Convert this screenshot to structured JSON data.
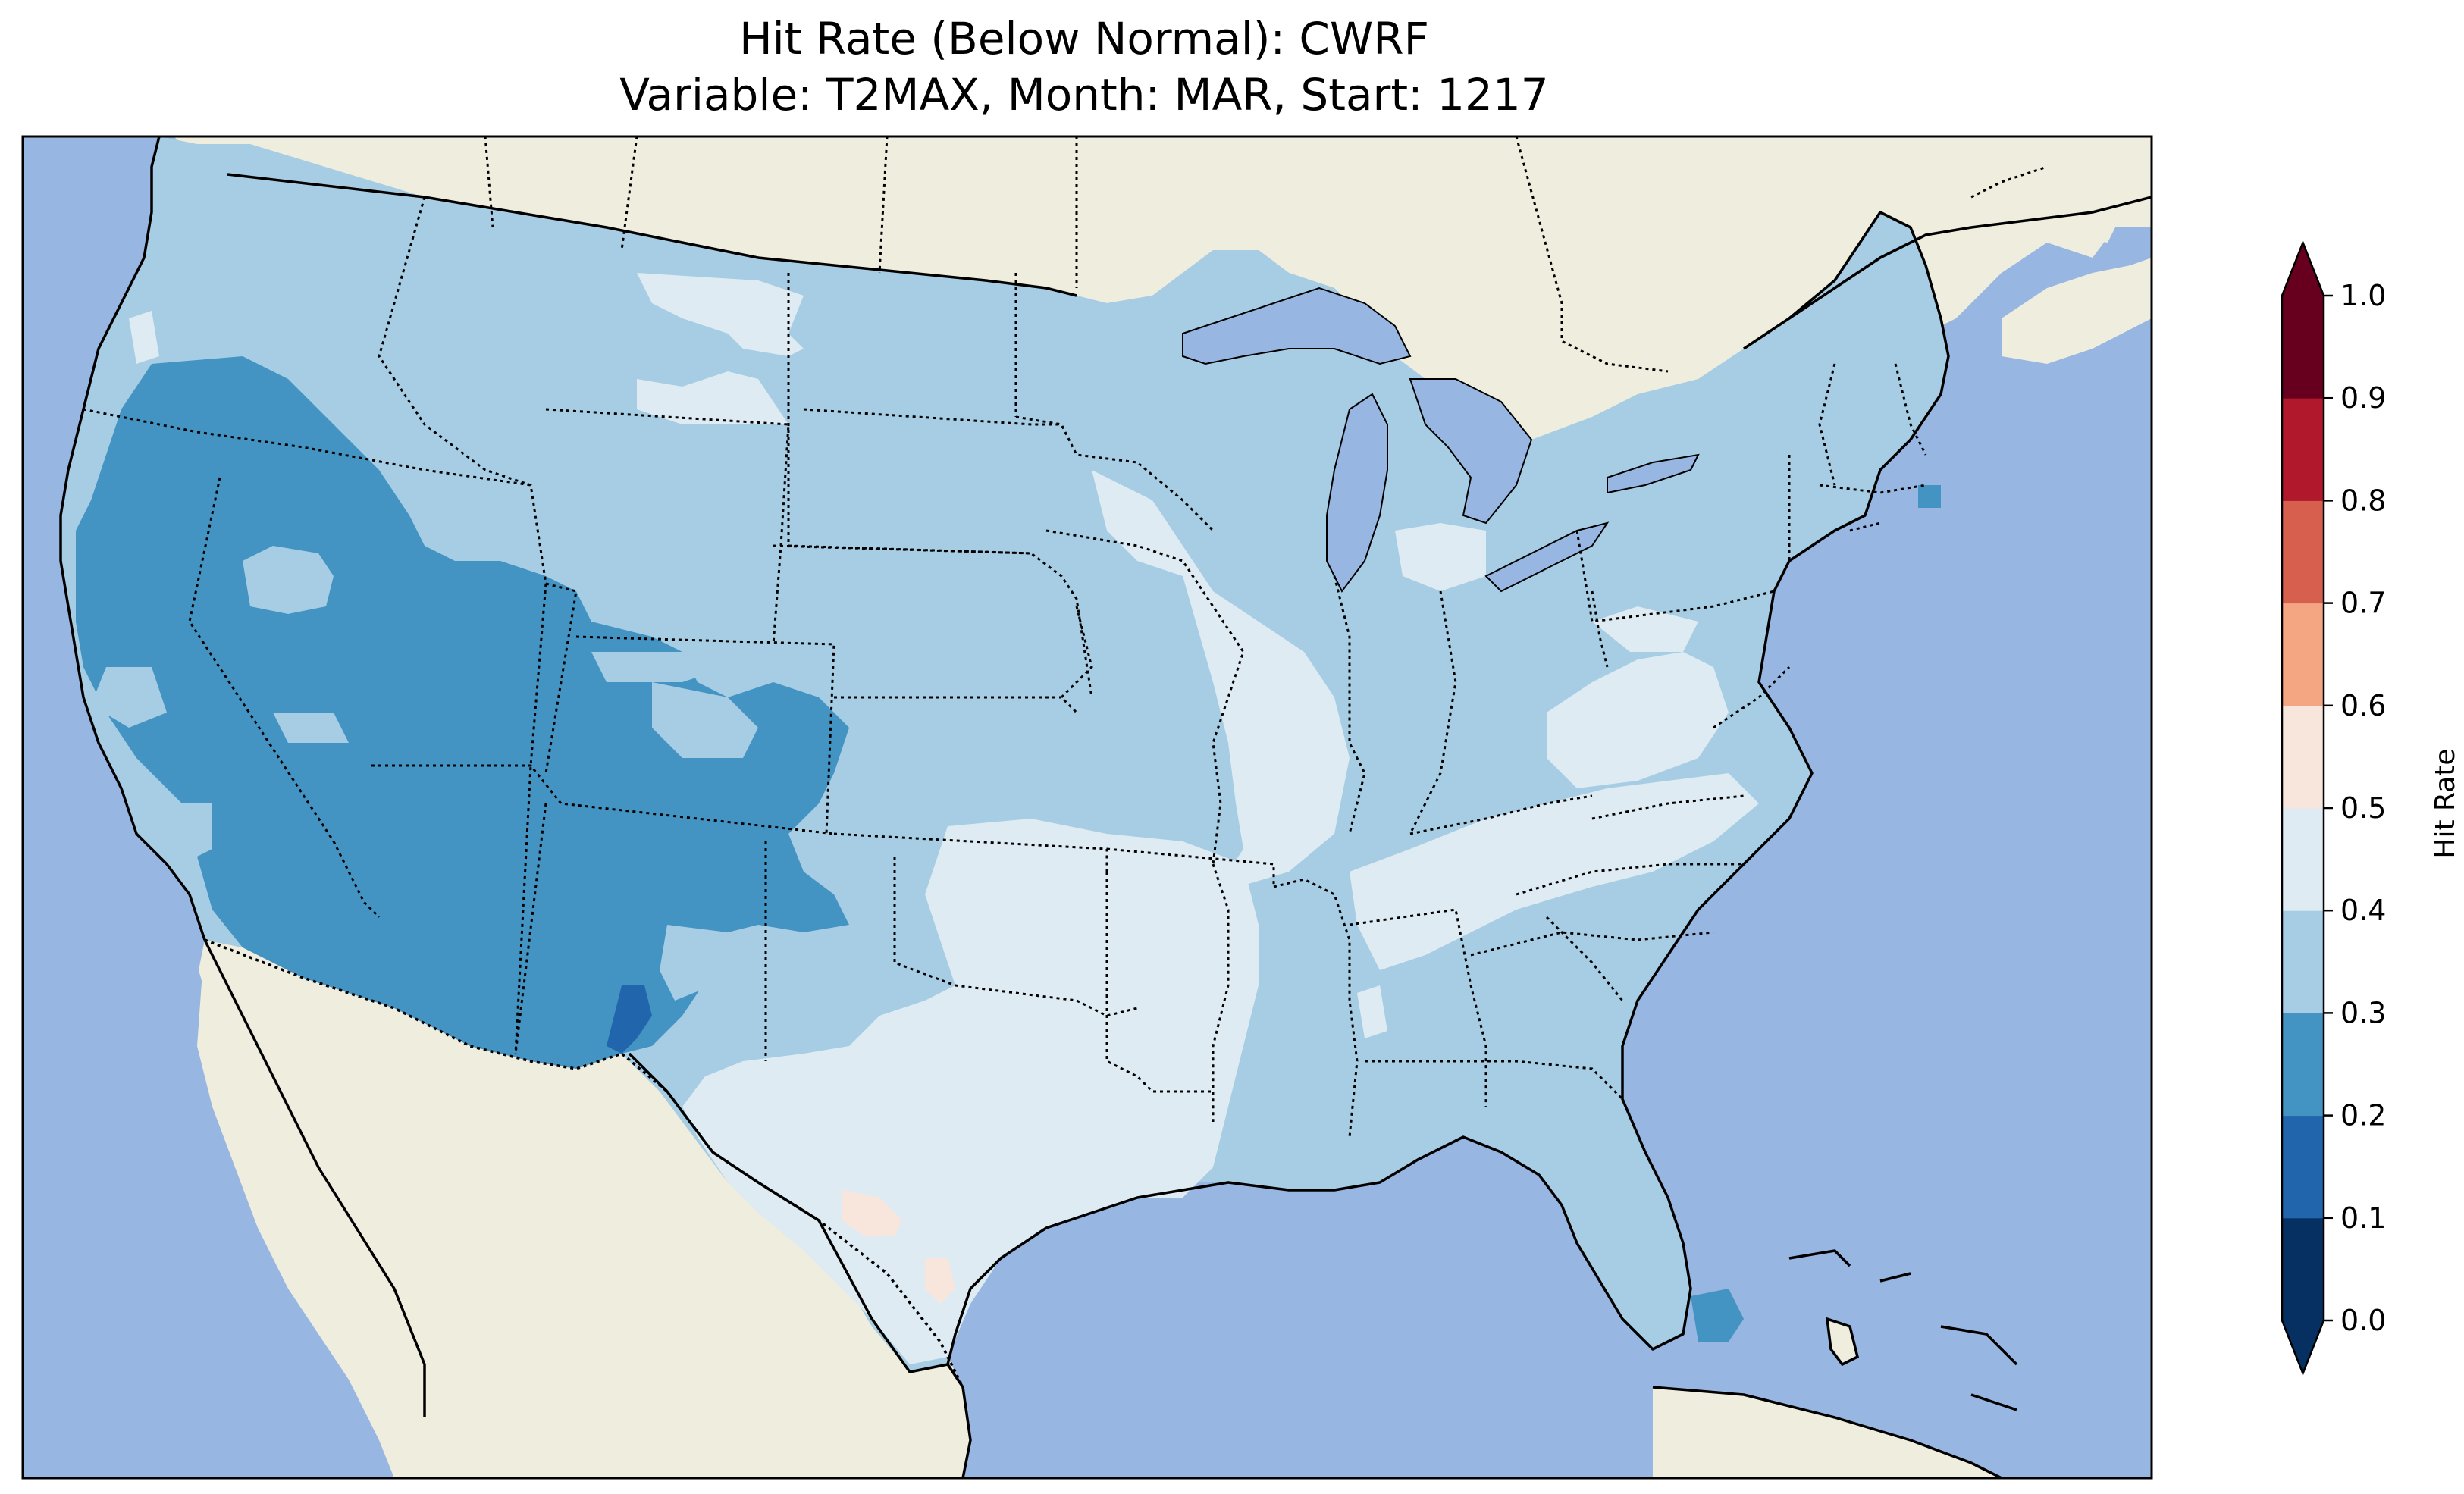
{
  "title": {
    "line1": "Hit Rate (Below Normal): CWRF",
    "line2": "Variable: T2MAX, Month: MAR, Start: 1217"
  },
  "colorbar": {
    "label": "Hit Rate",
    "ticks": [
      "0.0",
      "0.1",
      "0.2",
      "0.3",
      "0.4",
      "0.5",
      "0.6",
      "0.7",
      "0.8",
      "0.9",
      "1.0"
    ],
    "bins": [
      {
        "range": [
          0.0,
          0.1
        ],
        "color": "#053061"
      },
      {
        "range": [
          0.1,
          0.2
        ],
        "color": "#2166ac"
      },
      {
        "range": [
          0.2,
          0.3
        ],
        "color": "#4393c3"
      },
      {
        "range": [
          0.3,
          0.4
        ],
        "color": "#a6cde3"
      },
      {
        "range": [
          0.4,
          0.5
        ],
        "color": "#deebf2"
      },
      {
        "range": [
          0.5,
          0.6
        ],
        "color": "#f8e6dc"
      },
      {
        "range": [
          0.6,
          0.7
        ],
        "color": "#f4a582"
      },
      {
        "range": [
          0.7,
          0.8
        ],
        "color": "#d6604d"
      },
      {
        "range": [
          0.8,
          0.9
        ],
        "color": "#b2182b"
      },
      {
        "range": [
          0.9,
          1.0
        ],
        "color": "#67001f"
      }
    ],
    "under_color": "#053061",
    "over_color": "#67001f"
  },
  "map": {
    "ocean_color": "#97b6e1",
    "land_color": "#efedde",
    "border_color": "#000000"
  }
}
